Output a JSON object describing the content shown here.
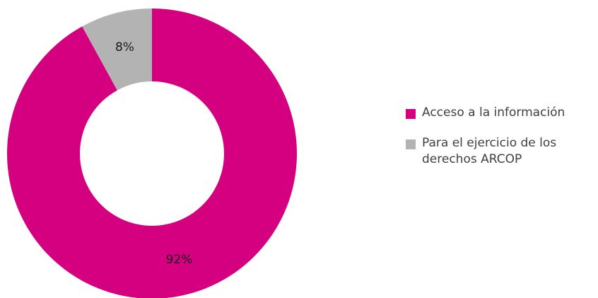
{
  "chart_data": {
    "type": "pie",
    "variant": "donut",
    "title": "",
    "categories": [
      "Acceso a la información",
      "Para el ejercicio de los derechos ARCOP"
    ],
    "values": [
      92,
      8
    ],
    "labels": [
      "92%",
      "8%"
    ],
    "colors": [
      "#d4007f",
      "#b3b3b3"
    ],
    "legend_position": "right"
  }
}
